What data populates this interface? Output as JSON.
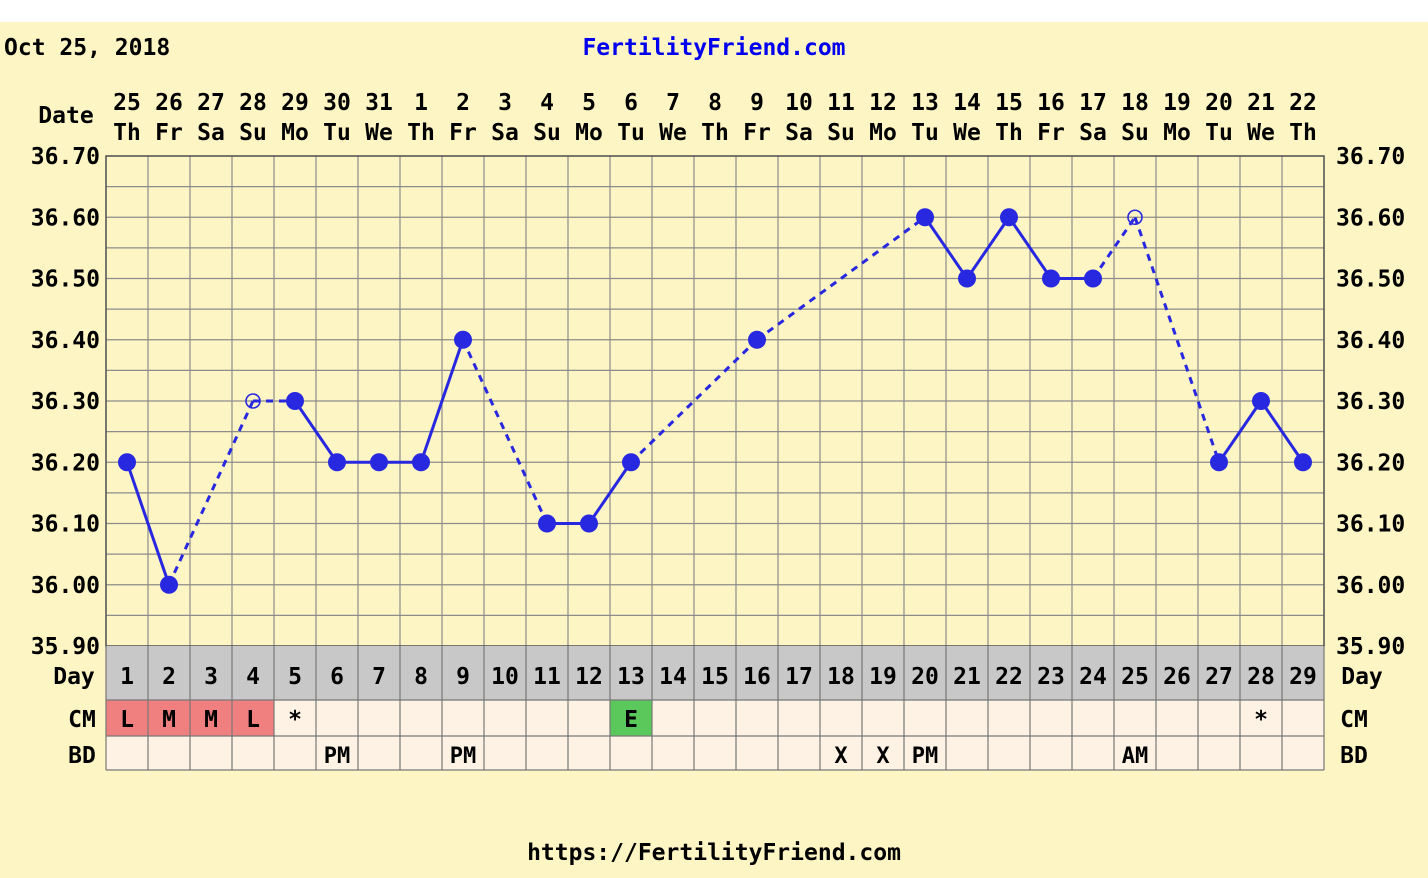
{
  "header": {
    "date_text": "Oct 25, 2018",
    "site_title": "FertilityFriend.com",
    "footer_url": "https://FertilityFriend.com"
  },
  "colors": {
    "background": "#fdf5c3",
    "grid": "#8c8c8c",
    "line": "#2828e0",
    "day_band": "#c8c8c8",
    "cell": "#fdf2e4",
    "cm_L": "#f08080",
    "cm_M": "#f08080",
    "cm_E": "#5ac85a",
    "title_link": "#0000ee"
  },
  "labels": {
    "date_row": "Date",
    "day_row": "Day",
    "cm_row": "CM",
    "bd_row": "BD"
  },
  "chart_data": {
    "type": "line",
    "ylim": [
      35.9,
      36.7
    ],
    "y_ticks": [
      "35.90",
      "36.00",
      "36.10",
      "36.20",
      "36.30",
      "36.40",
      "36.50",
      "36.60",
      "36.70"
    ],
    "dates": [
      "25",
      "26",
      "27",
      "28",
      "29",
      "30",
      "31",
      "1",
      "2",
      "3",
      "4",
      "5",
      "6",
      "7",
      "8",
      "9",
      "10",
      "11",
      "12",
      "13",
      "14",
      "15",
      "16",
      "17",
      "18",
      "19",
      "20",
      "21",
      "22"
    ],
    "weekdays": [
      "Th",
      "Fr",
      "Sa",
      "Su",
      "Mo",
      "Tu",
      "We",
      "Th",
      "Fr",
      "Sa",
      "Su",
      "Mo",
      "Tu",
      "We",
      "Th",
      "Fr",
      "Sa",
      "Su",
      "Mo",
      "Tu",
      "We",
      "Th",
      "Fr",
      "Sa",
      "Su",
      "Mo",
      "Tu",
      "We",
      "Th"
    ],
    "cycle_days": [
      1,
      2,
      3,
      4,
      5,
      6,
      7,
      8,
      9,
      10,
      11,
      12,
      13,
      14,
      15,
      16,
      17,
      18,
      19,
      20,
      21,
      22,
      23,
      24,
      25,
      26,
      27,
      28,
      29
    ],
    "temperatures": [
      {
        "day": 1,
        "temp": 36.2,
        "marker": "filled"
      },
      {
        "day": 2,
        "temp": 36.0,
        "marker": "filled"
      },
      {
        "day": 4,
        "temp": 36.3,
        "marker": "open"
      },
      {
        "day": 5,
        "temp": 36.3,
        "marker": "filled"
      },
      {
        "day": 6,
        "temp": 36.2,
        "marker": "filled"
      },
      {
        "day": 7,
        "temp": 36.2,
        "marker": "filled"
      },
      {
        "day": 8,
        "temp": 36.2,
        "marker": "filled"
      },
      {
        "day": 9,
        "temp": 36.4,
        "marker": "filled"
      },
      {
        "day": 11,
        "temp": 36.1,
        "marker": "filled"
      },
      {
        "day": 12,
        "temp": 36.1,
        "marker": "filled"
      },
      {
        "day": 13,
        "temp": 36.2,
        "marker": "filled"
      },
      {
        "day": 16,
        "temp": 36.4,
        "marker": "filled"
      },
      {
        "day": 20,
        "temp": 36.6,
        "marker": "filled"
      },
      {
        "day": 21,
        "temp": 36.5,
        "marker": "filled"
      },
      {
        "day": 22,
        "temp": 36.6,
        "marker": "filled"
      },
      {
        "day": 23,
        "temp": 36.5,
        "marker": "filled"
      },
      {
        "day": 24,
        "temp": 36.5,
        "marker": "filled"
      },
      {
        "day": 25,
        "temp": 36.6,
        "marker": "open"
      },
      {
        "day": 27,
        "temp": 36.2,
        "marker": "filled"
      },
      {
        "day": 28,
        "temp": 36.3,
        "marker": "filled"
      },
      {
        "day": 29,
        "temp": 36.2,
        "marker": "filled"
      }
    ],
    "cm": [
      {
        "day": 1,
        "value": "L",
        "type": "L"
      },
      {
        "day": 2,
        "value": "M",
        "type": "M"
      },
      {
        "day": 3,
        "value": "M",
        "type": "M"
      },
      {
        "day": 4,
        "value": "L",
        "type": "L"
      },
      {
        "day": 5,
        "value": "*",
        "type": "star"
      },
      {
        "day": 13,
        "value": "E",
        "type": "E"
      },
      {
        "day": 28,
        "value": "*",
        "type": "star"
      }
    ],
    "bd": [
      {
        "day": 6,
        "value": "PM"
      },
      {
        "day": 9,
        "value": "PM"
      },
      {
        "day": 18,
        "value": "X"
      },
      {
        "day": 19,
        "value": "X"
      },
      {
        "day": 20,
        "value": "PM"
      },
      {
        "day": 25,
        "value": "AM"
      }
    ],
    "grid": true
  }
}
